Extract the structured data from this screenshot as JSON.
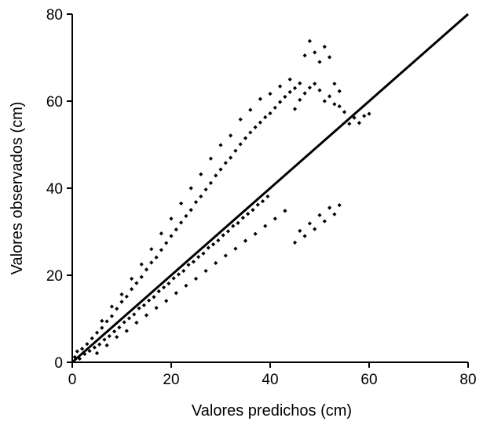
{
  "chart_data": {
    "type": "scatter",
    "title": "",
    "xlabel": "Valores predichos (cm)",
    "ylabel": "Valores observados (cm)",
    "xlim": [
      0,
      80
    ],
    "ylim": [
      0,
      80
    ],
    "x_ticks": [
      0,
      20,
      40,
      60,
      80
    ],
    "y_ticks": [
      0,
      20,
      40,
      60,
      80
    ],
    "x_tick_labels": [
      "0",
      "20",
      "40",
      "60",
      "80"
    ],
    "y_tick_labels": [
      "0",
      "20",
      "40",
      "60",
      "80"
    ],
    "grid": false,
    "legend": "none",
    "marker_color": "#000000",
    "line_color": "#000000",
    "reference_line": {
      "type": "1:1",
      "x": [
        0,
        80
      ],
      "y": [
        0,
        80
      ]
    },
    "series": [
      {
        "values": [
          [
            0.5,
            1.2
          ],
          [
            1,
            2.5
          ],
          [
            1.5,
            0.8
          ],
          [
            2,
            3.1
          ],
          [
            2.5,
            1.9
          ],
          [
            3,
            4.2
          ],
          [
            3.5,
            2.6
          ],
          [
            4,
            5.5
          ],
          [
            4.5,
            3.4
          ],
          [
            5,
            6.8
          ],
          [
            5.5,
            4.1
          ],
          [
            6,
            7.9
          ],
          [
            6.5,
            5.2
          ],
          [
            7,
            9.4
          ],
          [
            7.5,
            6.0
          ],
          [
            8,
            10.6
          ],
          [
            8.5,
            7.1
          ],
          [
            9,
            12.3
          ],
          [
            9.5,
            8.0
          ],
          [
            10,
            13.9
          ],
          [
            10.5,
            9.2
          ],
          [
            11,
            15.1
          ],
          [
            11.5,
            10.1
          ],
          [
            12,
            16.8
          ],
          [
            12.5,
            11.0
          ],
          [
            13,
            18.2
          ],
          [
            13.5,
            12.4
          ],
          [
            14,
            19.6
          ],
          [
            14.5,
            13.1
          ],
          [
            15,
            21.3
          ],
          [
            15.5,
            14.2
          ],
          [
            16,
            22.9
          ],
          [
            16.5,
            15.0
          ],
          [
            17,
            24.1
          ],
          [
            17.5,
            16.3
          ],
          [
            18,
            25.8
          ],
          [
            18.5,
            17.2
          ],
          [
            19,
            27.4
          ],
          [
            19.5,
            18.1
          ],
          [
            20,
            29.0
          ],
          [
            20.5,
            19.3
          ],
          [
            21,
            30.5
          ],
          [
            21.5,
            20.2
          ],
          [
            22,
            32.1
          ],
          [
            22.5,
            21.0
          ],
          [
            23,
            33.6
          ],
          [
            23.5,
            22.4
          ],
          [
            24,
            35.0
          ],
          [
            24.5,
            23.1
          ],
          [
            25,
            36.8
          ],
          [
            25.5,
            24.2
          ],
          [
            26,
            38.1
          ],
          [
            26.5,
            25.0
          ],
          [
            27,
            39.7
          ],
          [
            27.5,
            26.3
          ],
          [
            28,
            41.2
          ],
          [
            28.5,
            27.1
          ],
          [
            29,
            42.9
          ],
          [
            29.5,
            28.0
          ],
          [
            30,
            44.3
          ],
          [
            30.5,
            29.2
          ],
          [
            31,
            45.8
          ],
          [
            31.5,
            30.1
          ],
          [
            32,
            47.0
          ],
          [
            32.5,
            31.3
          ],
          [
            33,
            48.6
          ],
          [
            33.5,
            32.0
          ],
          [
            34,
            50.1
          ],
          [
            34.5,
            33.2
          ],
          [
            35,
            51.5
          ],
          [
            35.5,
            34.1
          ],
          [
            36,
            52.8
          ],
          [
            36.5,
            35.0
          ],
          [
            37,
            54.0
          ],
          [
            37.5,
            36.2
          ],
          [
            38,
            55.1
          ],
          [
            38.5,
            37.0
          ],
          [
            39,
            56.3
          ],
          [
            39.5,
            38.1
          ],
          [
            40,
            57.2
          ],
          [
            41,
            58.5
          ],
          [
            42,
            59.8
          ],
          [
            43,
            61.0
          ],
          [
            44,
            62.1
          ],
          [
            45,
            63.0
          ],
          [
            46,
            64.1
          ],
          [
            47,
            70.5
          ],
          [
            48,
            73.8
          ],
          [
            49,
            71.2
          ],
          [
            50,
            69.0
          ],
          [
            51,
            72.5
          ],
          [
            52,
            70.1
          ],
          [
            53,
            64.0
          ],
          [
            54,
            62.3
          ],
          [
            55,
            57.5
          ],
          [
            56,
            54.8
          ],
          [
            57,
            56.2
          ],
          [
            58,
            55.0
          ],
          [
            59,
            56.6
          ],
          [
            60,
            57.1
          ],
          [
            5,
            2.1
          ],
          [
            7,
            3.9
          ],
          [
            9,
            5.8
          ],
          [
            11,
            7.2
          ],
          [
            13,
            9.1
          ],
          [
            15,
            10.8
          ],
          [
            17,
            12.5
          ],
          [
            19,
            14.1
          ],
          [
            21,
            15.9
          ],
          [
            23,
            17.6
          ],
          [
            25,
            19.2
          ],
          [
            27,
            21.0
          ],
          [
            29,
            22.8
          ],
          [
            31,
            24.5
          ],
          [
            33,
            26.1
          ],
          [
            35,
            27.9
          ],
          [
            37,
            29.5
          ],
          [
            39,
            31.3
          ],
          [
            41,
            33.0
          ],
          [
            43,
            34.8
          ],
          [
            45,
            27.5
          ],
          [
            47,
            29.0
          ],
          [
            49,
            30.6
          ],
          [
            51,
            32.4
          ],
          [
            53,
            34.0
          ],
          [
            54,
            36.1
          ],
          [
            52,
            35.5
          ],
          [
            50,
            33.8
          ],
          [
            48,
            31.9
          ],
          [
            46,
            30.2
          ],
          [
            6,
            9.5
          ],
          [
            8,
            12.8
          ],
          [
            10,
            15.6
          ],
          [
            12,
            19.2
          ],
          [
            14,
            22.5
          ],
          [
            16,
            26.0
          ],
          [
            18,
            29.6
          ],
          [
            20,
            33.0
          ],
          [
            22,
            36.5
          ],
          [
            24,
            40.0
          ],
          [
            26,
            43.2
          ],
          [
            28,
            46.8
          ],
          [
            30,
            49.9
          ],
          [
            32,
            52.1
          ],
          [
            34,
            55.8
          ],
          [
            36,
            58.0
          ],
          [
            38,
            60.5
          ],
          [
            40,
            61.7
          ],
          [
            42,
            63.4
          ],
          [
            44,
            65.0
          ],
          [
            45,
            58.2
          ],
          [
            46,
            60.3
          ],
          [
            47,
            61.8
          ],
          [
            48,
            63.1
          ],
          [
            49,
            64.0
          ],
          [
            50,
            62.5
          ],
          [
            51,
            60.0
          ],
          [
            52,
            61.1
          ],
          [
            53,
            59.3
          ],
          [
            54,
            58.8
          ]
        ]
      }
    ]
  }
}
